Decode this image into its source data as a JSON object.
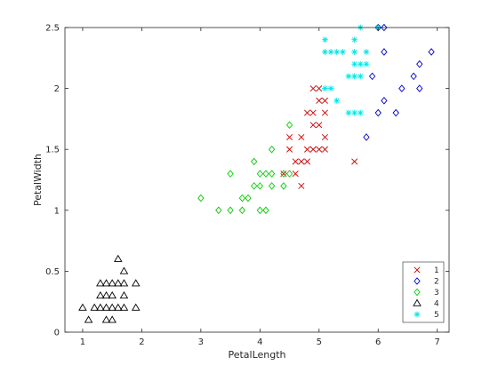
{
  "chart_data": {
    "type": "scatter",
    "title": "",
    "xlabel": "PetalLength",
    "ylabel": "PetalWidth",
    "xlim": [
      0.7,
      7.2
    ],
    "ylim": [
      0,
      2.5
    ],
    "xticks": [
      1,
      2,
      3,
      4,
      5,
      6,
      7
    ],
    "yticks": [
      0,
      0.5,
      1,
      1.5,
      2,
      2.5
    ],
    "grid": false,
    "legend_position": "bottom-right",
    "series": [
      {
        "name": "1",
        "marker": "x",
        "color": "#cc0000",
        "points": [
          [
            4.9,
            2.0
          ],
          [
            5.0,
            2.0
          ],
          [
            5.0,
            1.9
          ],
          [
            5.1,
            1.9
          ],
          [
            4.8,
            1.8
          ],
          [
            4.9,
            1.8
          ],
          [
            5.1,
            1.8
          ],
          [
            4.9,
            1.7
          ],
          [
            5.0,
            1.7
          ],
          [
            5.1,
            1.6
          ],
          [
            4.5,
            1.6
          ],
          [
            4.5,
            1.5
          ],
          [
            4.7,
            1.6
          ],
          [
            4.9,
            1.5
          ],
          [
            5.0,
            1.5
          ],
          [
            5.1,
            1.5
          ],
          [
            4.8,
            1.5
          ],
          [
            4.6,
            1.4
          ],
          [
            4.7,
            1.4
          ],
          [
            4.8,
            1.4
          ],
          [
            5.6,
            1.4
          ],
          [
            4.4,
            1.3
          ],
          [
            4.6,
            1.3
          ],
          [
            4.7,
            1.2
          ]
        ]
      },
      {
        "name": "2",
        "marker": "diamond",
        "color": "#0000cc",
        "points": [
          [
            6.1,
            2.5
          ],
          [
            6.0,
            2.5
          ],
          [
            6.1,
            2.3
          ],
          [
            6.9,
            2.3
          ],
          [
            6.7,
            2.2
          ],
          [
            6.6,
            2.1
          ],
          [
            5.9,
            2.1
          ],
          [
            6.4,
            2.0
          ],
          [
            6.7,
            2.0
          ],
          [
            6.1,
            1.9
          ],
          [
            6.0,
            1.8
          ],
          [
            6.3,
            1.8
          ],
          [
            5.8,
            1.6
          ]
        ]
      },
      {
        "name": "3",
        "marker": "diamond",
        "color": "#00cc00",
        "points": [
          [
            4.5,
            1.7
          ],
          [
            4.2,
            1.5
          ],
          [
            3.5,
            1.3
          ],
          [
            3.9,
            1.4
          ],
          [
            4.0,
            1.3
          ],
          [
            4.1,
            1.3
          ],
          [
            4.2,
            1.3
          ],
          [
            4.4,
            1.3
          ],
          [
            4.5,
            1.3
          ],
          [
            3.9,
            1.2
          ],
          [
            4.0,
            1.2
          ],
          [
            4.2,
            1.2
          ],
          [
            4.4,
            1.2
          ],
          [
            3.7,
            1.1
          ],
          [
            3.8,
            1.1
          ],
          [
            3.0,
            1.1
          ],
          [
            3.3,
            1.0
          ],
          [
            3.5,
            1.0
          ],
          [
            3.7,
            1.0
          ],
          [
            4.0,
            1.0
          ],
          [
            4.1,
            1.0
          ]
        ]
      },
      {
        "name": "4",
        "marker": "triangle",
        "color": "#000000",
        "points": [
          [
            1.6,
            0.6
          ],
          [
            1.7,
            0.5
          ],
          [
            1.3,
            0.4
          ],
          [
            1.5,
            0.4
          ],
          [
            1.6,
            0.4
          ],
          [
            1.7,
            0.4
          ],
          [
            1.9,
            0.4
          ],
          [
            1.4,
            0.4
          ],
          [
            1.3,
            0.3
          ],
          [
            1.4,
            0.3
          ],
          [
            1.5,
            0.3
          ],
          [
            1.7,
            0.3
          ],
          [
            1.0,
            0.2
          ],
          [
            1.2,
            0.2
          ],
          [
            1.3,
            0.2
          ],
          [
            1.4,
            0.2
          ],
          [
            1.5,
            0.2
          ],
          [
            1.6,
            0.2
          ],
          [
            1.9,
            0.2
          ],
          [
            1.7,
            0.2
          ],
          [
            1.1,
            0.1
          ],
          [
            1.4,
            0.1
          ],
          [
            1.5,
            0.1
          ]
        ]
      },
      {
        "name": "5",
        "marker": "asterisk",
        "color": "#00e5e5",
        "points": [
          [
            5.7,
            2.5
          ],
          [
            6.0,
            2.5
          ],
          [
            5.1,
            2.4
          ],
          [
            5.6,
            2.4
          ],
          [
            5.1,
            2.3
          ],
          [
            5.2,
            2.3
          ],
          [
            5.3,
            2.3
          ],
          [
            5.4,
            2.3
          ],
          [
            5.6,
            2.3
          ],
          [
            5.8,
            2.3
          ],
          [
            5.6,
            2.2
          ],
          [
            5.7,
            2.2
          ],
          [
            5.8,
            2.2
          ],
          [
            5.5,
            2.1
          ],
          [
            5.6,
            2.1
          ],
          [
            5.7,
            2.1
          ],
          [
            5.1,
            2.0
          ],
          [
            5.2,
            2.0
          ],
          [
            5.6,
            1.8
          ],
          [
            5.7,
            1.8
          ],
          [
            5.3,
            1.9
          ],
          [
            5.5,
            1.8
          ]
        ]
      }
    ]
  }
}
